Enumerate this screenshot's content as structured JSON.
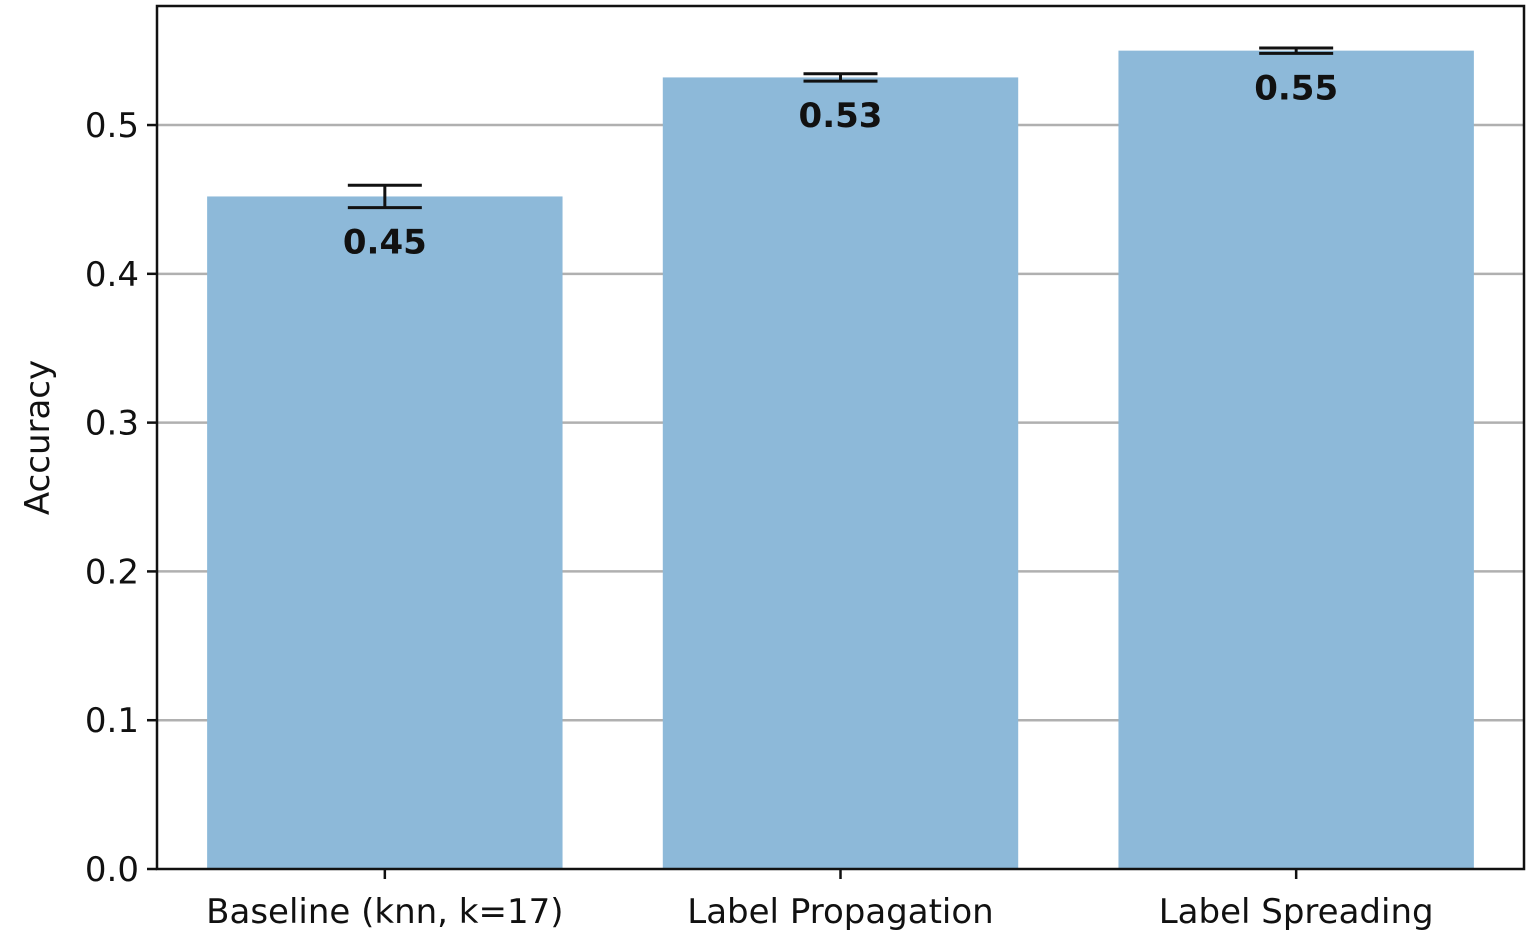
{
  "chart_data": {
    "type": "bar",
    "title": "",
    "xlabel": "",
    "ylabel": "Accuracy",
    "categories": [
      "Baseline (knn, k=17)",
      "Label Propagation",
      "Label Spreading"
    ],
    "values": [
      0.452,
      0.532,
      0.55
    ],
    "value_labels": [
      "0.45",
      "0.53",
      "0.55"
    ],
    "error": [
      0.0075,
      0.0025,
      0.0018
    ],
    "ylim": [
      0.0,
      0.58
    ],
    "yticks": [
      0.0,
      0.1,
      0.2,
      0.3,
      0.4,
      0.5
    ],
    "ytick_labels": [
      "0.0",
      "0.1",
      "0.2",
      "0.3",
      "0.4",
      "0.5"
    ],
    "grid": "horizontal",
    "bar_color": "#8db9d9",
    "grid_color": "#b0b0b0",
    "error_bar_color": "#111111"
  }
}
